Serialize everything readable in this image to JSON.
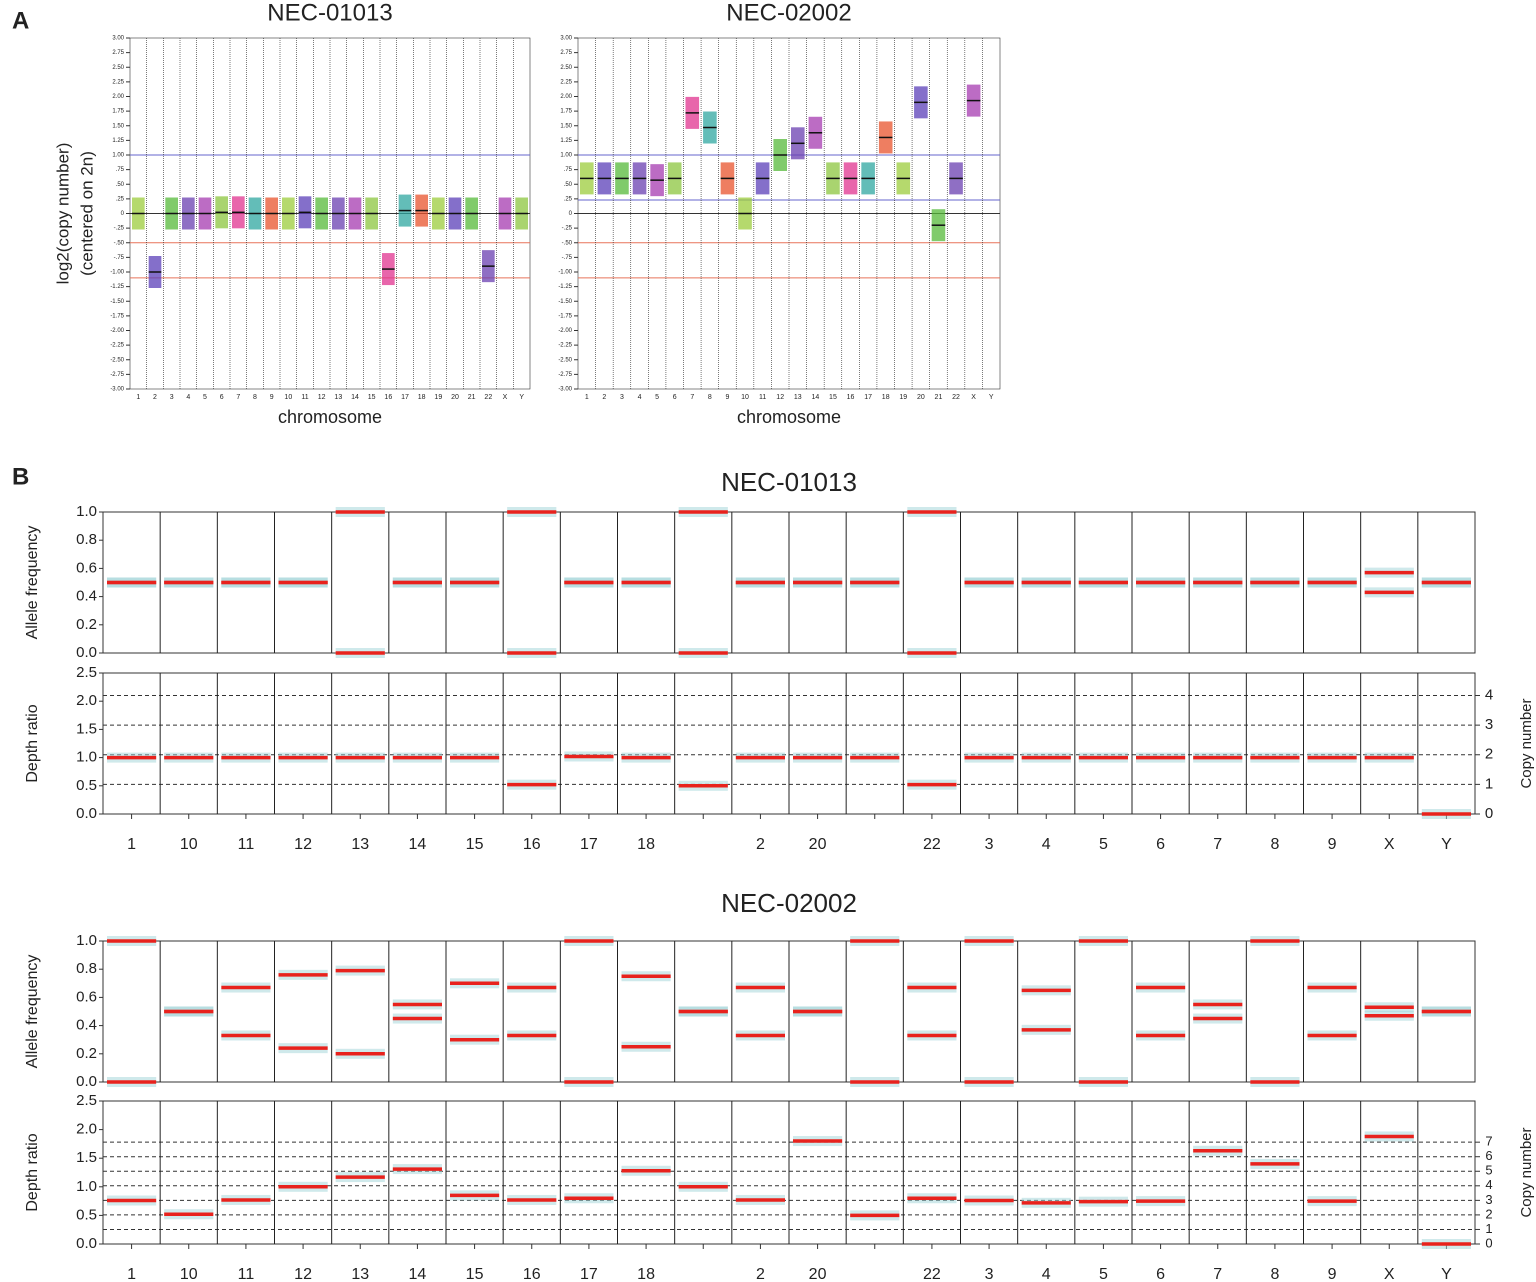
{
  "panels": [
    "A",
    "B"
  ],
  "chart_data": [
    {
      "type": "cnv",
      "title": "NEC-01013",
      "ylabel": "log2(copy number)",
      "ylabel2": "(centered on 2n)",
      "xlabel": "chromosome",
      "categories": [
        "1",
        "2",
        "3",
        "4",
        "5",
        "6",
        "7",
        "8",
        "9",
        "10",
        "11",
        "12",
        "13",
        "14",
        "15",
        "16",
        "17",
        "18",
        "19",
        "20",
        "21",
        "22",
        "X",
        "Y"
      ],
      "values": [
        0,
        -1.0,
        0,
        0,
        0,
        0.02,
        0.02,
        0,
        0,
        0,
        0.02,
        0,
        0,
        0,
        0,
        -0.95,
        0.05,
        0.05,
        0,
        0,
        0,
        -0.9,
        0,
        0
      ],
      "palette": [
        "#9ccc3c",
        "#5b3fb8",
        "#56b93a",
        "#6a3fb0",
        "#a53bb0",
        "#8cc63f",
        "#e0338f",
        "#2fa7a0",
        "#e8532c"
      ],
      "ylim": [
        -3,
        3
      ],
      "yticks": [
        {
          "value": 3,
          "label": "3.00"
        },
        {
          "value": 2.75,
          "label": "2.75"
        },
        {
          "value": 2.5,
          "label": "2.50"
        },
        {
          "value": 2.25,
          "label": "2.25"
        },
        {
          "value": 2,
          "label": "2.00"
        },
        {
          "value": 1.75,
          "label": "1.75"
        },
        {
          "value": 1.5,
          "label": "1.50"
        },
        {
          "value": 1.25,
          "label": "1.25"
        },
        {
          "value": 1,
          "label": "1.00"
        },
        {
          "value": 0.75,
          "label": ".75"
        },
        {
          "value": 0.5,
          "label": ".50"
        },
        {
          "value": 0.25,
          "label": ".25"
        },
        0,
        {
          "value": -0.25,
          "label": "-.25"
        },
        {
          "value": -0.5,
          "label": "-.50"
        },
        {
          "value": -0.75,
          "label": "-.75"
        },
        {
          "value": -1,
          "label": "-1.00"
        },
        {
          "value": -1.25,
          "label": "-1.25"
        },
        {
          "value": -1.5,
          "label": "-1.50"
        },
        {
          "value": -1.75,
          "label": "-1.75"
        },
        {
          "value": -2,
          "label": "-2.00"
        },
        {
          "value": -2.25,
          "label": "-2.25"
        },
        {
          "value": -2.5,
          "label": "-2.50"
        },
        {
          "value": -2.75,
          "label": "-2.75"
        },
        {
          "value": -3,
          "label": "-3.00"
        }
      ],
      "reference_lines": [
        {
          "value": 1,
          "color": "#6666cc"
        },
        {
          "value": 0,
          "color": "#333333"
        },
        {
          "value": -0.5,
          "color": "#e8735a"
        },
        {
          "value": -1.1,
          "color": "#e8735a"
        }
      ]
    },
    {
      "type": "cnv",
      "title": "NEC-02002",
      "xlabel": "chromosome",
      "categories": [
        "1",
        "2",
        "3",
        "4",
        "5",
        "6",
        "7",
        "8",
        "9",
        "10",
        "11",
        "12",
        "13",
        "14",
        "15",
        "16",
        "17",
        "18",
        "19",
        "20",
        "21",
        "22",
        "X",
        "Y"
      ],
      "values": [
        0.6,
        0.6,
        0.6,
        0.6,
        0.57,
        0.6,
        1.72,
        1.47,
        0.6,
        0,
        0.6,
        1.0,
        1.2,
        1.38,
        0.6,
        0.6,
        0.6,
        1.3,
        0.6,
        1.9,
        -0.2,
        0.6,
        1.93,
        null
      ],
      "palette": [
        "#9ccc3c",
        "#5b3fb8",
        "#56b93a",
        "#6a3fb0",
        "#a53bb0",
        "#8cc63f",
        "#e0338f",
        "#2fa7a0",
        "#e8532c"
      ],
      "ylim": [
        -3,
        3
      ],
      "yticks": [
        {
          "value": 3,
          "label": "3.00"
        },
        {
          "value": 2.75,
          "label": "2.75"
        },
        {
          "value": 2.5,
          "label": "2.50"
        },
        {
          "value": 2.25,
          "label": "2.25"
        },
        {
          "value": 2,
          "label": "2.00"
        },
        {
          "value": 1.75,
          "label": "1.75"
        },
        {
          "value": 1.5,
          "label": "1.50"
        },
        {
          "value": 1.25,
          "label": "1.25"
        },
        {
          "value": 1,
          "label": "1.00"
        },
        {
          "value": 0.75,
          "label": ".75"
        },
        {
          "value": 0.5,
          "label": ".50"
        },
        {
          "value": 0.25,
          "label": ".25"
        },
        0,
        {
          "value": -0.25,
          "label": "-.25"
        },
        {
          "value": -0.5,
          "label": "-.50"
        },
        {
          "value": -0.75,
          "label": "-.75"
        },
        {
          "value": -1,
          "label": "-1.00"
        },
        {
          "value": -1.25,
          "label": "-1.25"
        },
        {
          "value": -1.5,
          "label": "-1.50"
        },
        {
          "value": -1.75,
          "label": "-1.75"
        },
        {
          "value": -2,
          "label": "-2.00"
        },
        {
          "value": -2.25,
          "label": "-2.25"
        },
        {
          "value": -2.5,
          "label": "-2.50"
        },
        {
          "value": -2.75,
          "label": "-2.75"
        },
        {
          "value": -3,
          "label": "-3.00"
        }
      ],
      "reference_lines": [
        {
          "value": 1,
          "color": "#6666cc"
        },
        {
          "value": 0.23,
          "color": "#6666cc"
        },
        {
          "value": 0,
          "color": "#333333"
        },
        {
          "value": -0.5,
          "color": "#e8735a"
        },
        {
          "value": -1.1,
          "color": "#e8735a"
        }
      ]
    },
    {
      "type": "baf",
      "title": "NEC-01013",
      "ylabel": "Allele frequency",
      "categories": [
        "1",
        "10",
        "11",
        "12",
        "13",
        "14",
        "15",
        "16",
        "17",
        "18",
        null,
        "2",
        "20",
        null,
        "22",
        "3",
        "4",
        "5",
        "6",
        "7",
        "8",
        "9",
        "X",
        "Y"
      ],
      "series": [
        {
          "color": "#e8221d",
          "values": [
            0.5,
            0.5,
            0.5,
            0.5,
            1.0,
            0.5,
            0.5,
            1.0,
            0.5,
            0.5,
            1.0,
            0.5,
            0.5,
            0.5,
            1.0,
            0.5,
            0.5,
            0.5,
            0.5,
            0.5,
            0.5,
            0.5,
            0.57,
            0.5
          ]
        },
        {
          "color": "#e8221d",
          "values": [
            0.5,
            0.5,
            0.5,
            0.5,
            0,
            0.5,
            0.5,
            0,
            0.5,
            0.5,
            0,
            0.5,
            0.5,
            0.5,
            0,
            0.5,
            0.5,
            0.5,
            0.5,
            0.5,
            0.5,
            0.5,
            0.43,
            0.5
          ]
        }
      ],
      "ylim": [
        0,
        1
      ],
      "yticks": [
        {
          "value": 0,
          "label": "0.0"
        },
        0.2,
        0.4,
        0.6,
        0.8,
        {
          "value": 1,
          "label": "1.0"
        }
      ]
    },
    {
      "type": "depth",
      "ylabel": "Depth ratio",
      "y2label": "Copy number",
      "categories": [
        "1",
        "10",
        "11",
        "12",
        "13",
        "14",
        "15",
        "16",
        "17",
        "18",
        null,
        "2",
        "20",
        null,
        "22",
        "3",
        "4",
        "5",
        "6",
        "7",
        "8",
        "9",
        "X",
        "Y"
      ],
      "values": [
        1.0,
        1.0,
        1.0,
        1.0,
        1.0,
        1.0,
        1.0,
        0.52,
        1.02,
        1.0,
        0.5,
        1.0,
        1.0,
        1.0,
        0.52,
        1.0,
        1.0,
        1.0,
        1.0,
        1.0,
        1.0,
        1.0,
        1.0,
        0
      ],
      "color": "#e8221d",
      "ylim": [
        0,
        2.5
      ],
      "yticks": [
        {
          "value": 0,
          "label": "0.0"
        },
        0.5,
        {
          "value": 1,
          "label": "1.0"
        },
        1.5,
        {
          "value": 2,
          "label": "2.0"
        },
        2.5
      ],
      "y2lim": [
        0,
        4.76
      ],
      "y2ticks": [
        0,
        1,
        2,
        3,
        4
      ]
    },
    {
      "type": "baf",
      "title": "NEC-02002",
      "ylabel": "Allele frequency",
      "categories": [
        "1",
        "10",
        "11",
        "12",
        "13",
        "14",
        "15",
        "16",
        "17",
        "18",
        null,
        "2",
        "20",
        null,
        "22",
        "3",
        "4",
        "5",
        "6",
        "7",
        "8",
        "9",
        "X",
        "Y"
      ],
      "series": [
        {
          "color": "#e8221d",
          "values": [
            1.0,
            0.5,
            0.67,
            0.76,
            0.79,
            0.55,
            0.7,
            0.67,
            1.0,
            0.75,
            0.5,
            0.67,
            0.5,
            1.0,
            0.67,
            1.0,
            0.65,
            1.0,
            0.67,
            0.55,
            1.0,
            0.67,
            0.53,
            0.5
          ]
        },
        {
          "color": "#e8221d",
          "values": [
            0,
            0.5,
            0.33,
            0.24,
            0.2,
            0.45,
            0.3,
            0.33,
            0,
            0.25,
            0.5,
            0.33,
            0.5,
            0,
            0.33,
            0,
            0.37,
            0,
            0.33,
            0.45,
            0,
            0.33,
            0.47,
            0.5
          ]
        }
      ],
      "ylim": [
        0,
        1
      ],
      "yticks": [
        {
          "value": 0,
          "label": "0.0"
        },
        0.2,
        0.4,
        0.6,
        0.8,
        {
          "value": 1,
          "label": "1.0"
        }
      ]
    },
    {
      "type": "depth",
      "ylabel": "Depth ratio",
      "y2label": "Copy number",
      "categories": [
        "1",
        "10",
        "11",
        "12",
        "13",
        "14",
        "15",
        "16",
        "17",
        "18",
        null,
        "2",
        "20",
        null,
        "22",
        "3",
        "4",
        "5",
        "6",
        "7",
        "8",
        "9",
        "X",
        "Y"
      ],
      "values": [
        0.76,
        0.52,
        0.77,
        1.0,
        1.17,
        1.31,
        0.85,
        0.77,
        0.8,
        1.28,
        1.0,
        0.77,
        1.8,
        0.5,
        0.8,
        0.76,
        0.72,
        0.74,
        0.75,
        1.63,
        1.4,
        0.75,
        1.88,
        0
      ],
      "color": "#e8221d",
      "ylim": [
        0,
        2.5
      ],
      "yticks": [
        {
          "value": 0,
          "label": "0.0"
        },
        0.5,
        {
          "value": 1,
          "label": "1.0"
        },
        1.5,
        {
          "value": 2,
          "label": "2.0"
        },
        2.5
      ],
      "y2lim": [
        0,
        9.83
      ],
      "y2ticks": [
        0,
        1,
        2,
        3,
        4,
        5,
        6,
        7
      ]
    }
  ]
}
